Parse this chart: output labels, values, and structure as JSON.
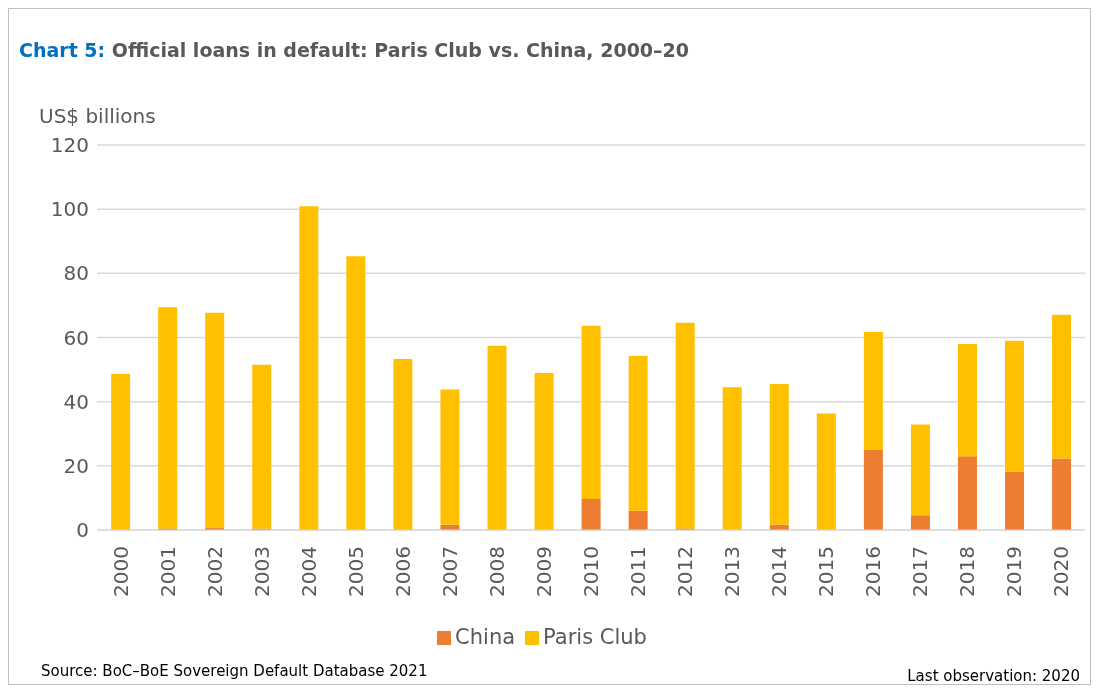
{
  "chart_data": {
    "type": "bar",
    "title": "Chart 5: Official loans in default: Paris Club vs. China, 2000–20",
    "ylabel": "US$ billions",
    "categories": [
      "2000",
      "2001",
      "2002",
      "2003",
      "2004",
      "2005",
      "2006",
      "2007",
      "2008",
      "2009",
      "2010",
      "2011",
      "2012",
      "2013",
      "2014",
      "2015",
      "2016",
      "2017",
      "2018",
      "2019",
      "2020"
    ],
    "series": [
      {
        "name": "China",
        "color": "#ed7d31",
        "values": [
          0,
          0.5,
          0.6,
          0.5,
          0,
          0,
          0,
          1.6,
          0,
          0,
          9.7,
          6.0,
          0.5,
          0,
          1.6,
          0,
          25.1,
          4.6,
          23.0,
          18.2,
          22.3
        ]
      },
      {
        "name": "Paris Club",
        "color": "#ffc000",
        "values": [
          48.6,
          68.9,
          67.1,
          51.0,
          100.9,
          85.3,
          53.3,
          42.2,
          57.4,
          48.9,
          54.0,
          48.2,
          64.1,
          44.5,
          43.9,
          36.3,
          36.6,
          28.3,
          35.0,
          40.8,
          44.8
        ]
      }
    ],
    "stacked": true,
    "ylim": [
      0,
      120
    ],
    "yticks": [
      0,
      20,
      40,
      60,
      80,
      100,
      120
    ],
    "grid": "y",
    "legend": "bottom",
    "annotations": [
      "Source: BoC–BoE Sovereign Default Database 2021",
      "Last observation: 2020"
    ]
  }
}
